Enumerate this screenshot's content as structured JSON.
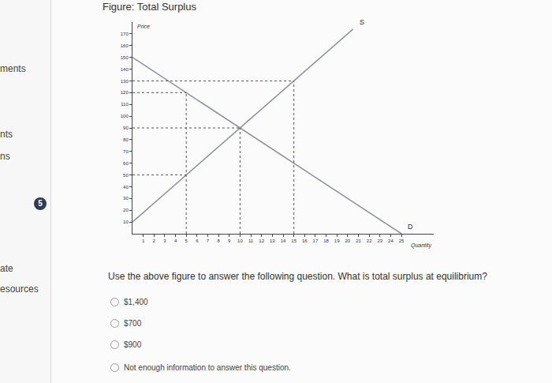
{
  "chart_data": {
    "type": "line",
    "title": "Figure: Total Surplus",
    "x_label": "Quantity",
    "y_label": "Price",
    "series": [
      {
        "name": "S",
        "x": [
          0,
          5,
          10,
          15,
          20.5
        ],
        "values": [
          10,
          50,
          90,
          130,
          174
        ],
        "color": "#8d929c"
      },
      {
        "name": "D",
        "x": [
          0,
          5,
          10,
          15,
          25
        ],
        "values": [
          150,
          120,
          90,
          60,
          0
        ],
        "color": "#8d929c"
      }
    ],
    "guides": {
      "horizontal": [
        {
          "y": 130,
          "x_end": 15
        },
        {
          "y": 120,
          "x_end": 5
        },
        {
          "y": 90,
          "x_end": 10
        },
        {
          "y": 50,
          "x_end": 5
        }
      ],
      "vertical": [
        {
          "x": 5,
          "y_end": 120
        },
        {
          "x": 10,
          "y_end": 90
        },
        {
          "x": 15,
          "y_end": 130
        }
      ]
    },
    "xlim": [
      0,
      28
    ],
    "ylim": [
      0,
      180
    ],
    "xticks": [
      1,
      2,
      3,
      4,
      5,
      6,
      7,
      8,
      9,
      10,
      11,
      12,
      13,
      14,
      15,
      16,
      17,
      18,
      19,
      20,
      21,
      22,
      23,
      24,
      25
    ],
    "yticks": [
      10,
      20,
      30,
      40,
      50,
      60,
      70,
      80,
      90,
      100,
      110,
      120,
      130,
      140,
      150,
      160,
      170
    ],
    "grid": false
  },
  "page": {
    "sidebar": [
      "ments",
      "nts",
      "ns",
      "ate",
      "esources"
    ],
    "badge": "5",
    "question": "Use the above figure to answer the following question. What is total surplus at equilibrium?",
    "options": [
      "$1,400",
      "$700",
      "$900",
      "Not enough information to answer this question."
    ]
  }
}
